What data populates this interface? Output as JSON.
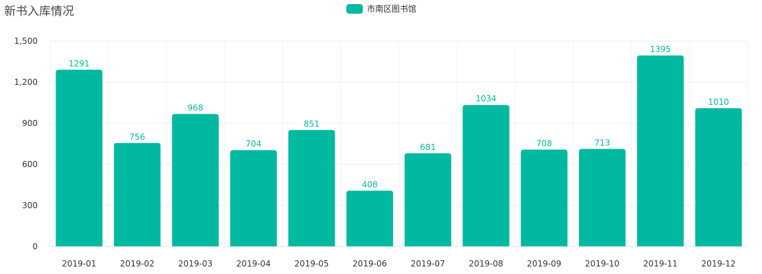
{
  "title": "新书入库情况",
  "legend": {
    "label": "市南区图书馆",
    "color": "#00b9a0"
  },
  "chart_data": {
    "type": "bar",
    "categories": [
      "2019-01",
      "2019-02",
      "2019-03",
      "2019-04",
      "2019-05",
      "2019-06",
      "2019-07",
      "2019-08",
      "2019-09",
      "2019-10",
      "2019-11",
      "2019-12"
    ],
    "series": [
      {
        "name": "市南区图书馆",
        "values": [
          1291,
          756,
          968,
          704,
          851,
          408,
          681,
          1034,
          708,
          713,
          1395,
          1010
        ],
        "color": "#00b9a0"
      }
    ],
    "ylim": [
      0,
      1500
    ],
    "yticks": [
      0,
      300,
      600,
      900,
      1200,
      1500
    ],
    "ytick_labels": [
      "0",
      "300",
      "600",
      "900",
      "1,200",
      "1,500"
    ],
    "grid": true,
    "data_labels": true,
    "legend_position": "top-center"
  }
}
